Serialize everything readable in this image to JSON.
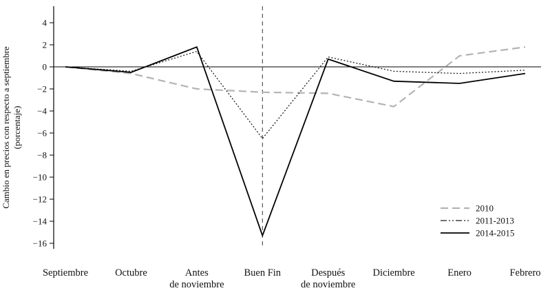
{
  "chart_data": {
    "type": "line",
    "categories": [
      "Septiembre",
      "Octubre",
      "Antes\nde noviembre",
      "Buen Fin",
      "Después\nde noviembre",
      "Diciembre",
      "Enero",
      "Febrero"
    ],
    "series": [
      {
        "name": "2010",
        "style": "dashed",
        "color": "#b3b3b3",
        "values": [
          0,
          -0.6,
          -2.0,
          -2.3,
          -2.4,
          -3.6,
          1.0,
          1.8
        ]
      },
      {
        "name": "2011-2013",
        "style": "dotted",
        "color": "#1a1a1a",
        "values": [
          0,
          -0.4,
          1.4,
          -6.5,
          0.9,
          -0.4,
          -0.6,
          -0.3
        ]
      },
      {
        "name": "2014-2015",
        "style": "solid",
        "color": "#000000",
        "values": [
          0,
          -0.5,
          1.8,
          -15.3,
          0.7,
          -1.3,
          -1.5,
          -0.6
        ]
      }
    ],
    "title": "",
    "xlabel": "",
    "ylabel": "Cambio en precios con respecto a septiembre (porcentaje)",
    "ylabel_line1": "Cambio en precios con respecto a septiembre",
    "ylabel_line2": "(porcentaje)",
    "yticks": [
      4,
      2,
      0,
      -2,
      -4,
      -6,
      -8,
      -10,
      -12,
      -14,
      -16
    ],
    "ylim": [
      -16.5,
      5.5
    ],
    "grid": false,
    "vline_category": "Buen Fin",
    "legend_position": "lower right"
  }
}
